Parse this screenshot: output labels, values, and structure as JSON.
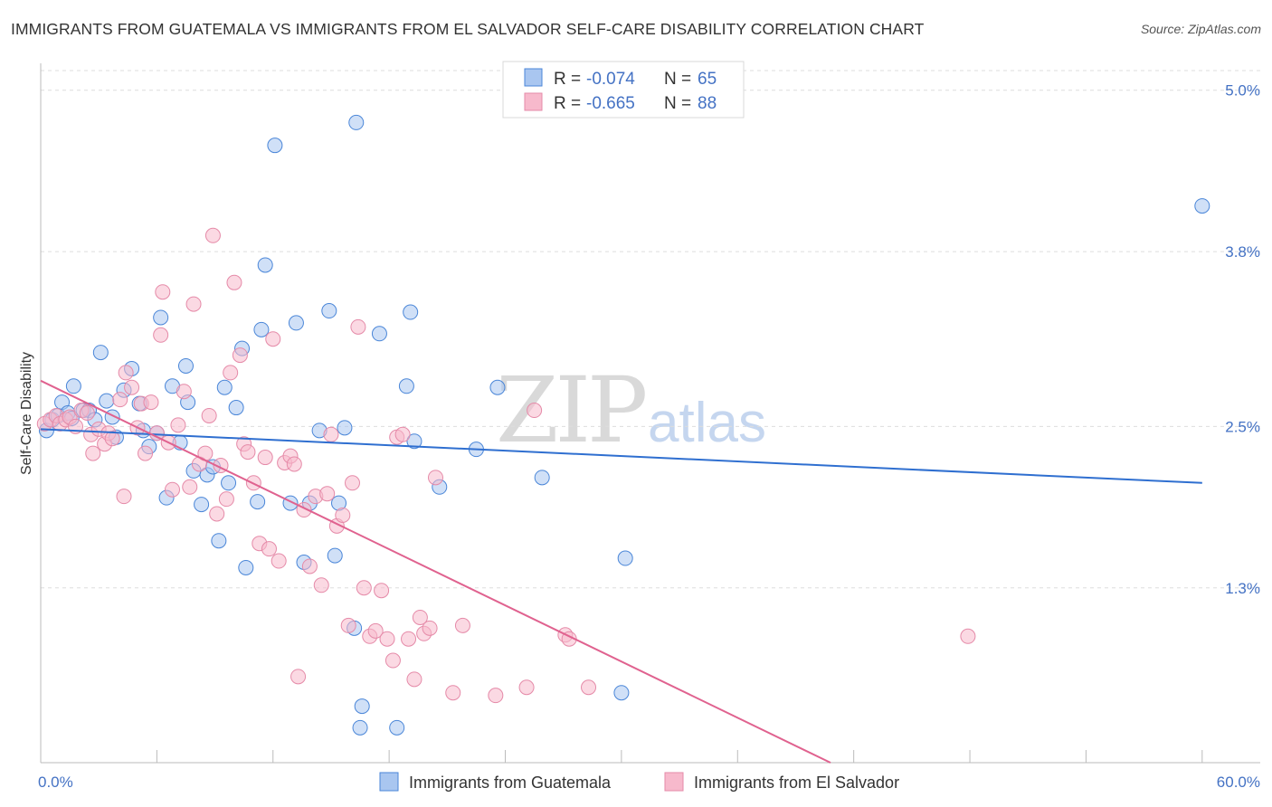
{
  "title": "IMMIGRANTS FROM GUATEMALA VS IMMIGRANTS FROM EL SALVADOR SELF-CARE DISABILITY CORRELATION CHART",
  "source": "Source: ZipAtlas.com",
  "watermark": {
    "zip": "ZIP",
    "atlas": "atlas"
  },
  "legend": {
    "r_label": "R =",
    "n_label": "N =",
    "items": [
      {
        "r": "-0.074",
        "n": "65"
      },
      {
        "r": "-0.665",
        "n": "88"
      }
    ]
  },
  "chart_data": {
    "type": "scatter",
    "title": "IMMIGRANTS FROM GUATEMALA VS IMMIGRANTS FROM EL SALVADOR SELF-CARE DISABILITY CORRELATION CHART",
    "xlabel": "",
    "ylabel": "Self-Care Disability",
    "xlim": [
      0,
      63
    ],
    "ylim": [
      0,
      5.2
    ],
    "x_tick_labels": [
      "0.0%",
      "60.0%"
    ],
    "y_ticks": [
      1.3,
      2.5,
      3.8,
      5.0
    ],
    "y_tick_labels": [
      "1.3%",
      "2.5%",
      "3.8%",
      "5.0%"
    ],
    "grid": true,
    "legend_position": "top-center",
    "colors": {
      "guatemala_fill": "#a9c6f0",
      "guatemala_stroke": "#4a86d8",
      "guatemala_line": "#2f6fd0",
      "elsalvador_fill": "#f7b9cc",
      "elsalvador_stroke": "#e58aa8",
      "elsalvador_line": "#e0628f"
    },
    "series": [
      {
        "name": "Immigrants from Guatemala",
        "trend": {
          "x": [
            0,
            60
          ],
          "y": [
            2.48,
            2.08
          ]
        },
        "points": [
          [
            0.3,
            2.47
          ],
          [
            0.6,
            2.55
          ],
          [
            0.9,
            2.58
          ],
          [
            1.1,
            2.68
          ],
          [
            1.4,
            2.6
          ],
          [
            1.6,
            2.56
          ],
          [
            1.7,
            2.8
          ],
          [
            2.2,
            2.62
          ],
          [
            2.5,
            2.62
          ],
          [
            2.8,
            2.55
          ],
          [
            3.1,
            3.05
          ],
          [
            3.4,
            2.69
          ],
          [
            3.7,
            2.57
          ],
          [
            3.9,
            2.42
          ],
          [
            4.3,
            2.77
          ],
          [
            4.7,
            2.93
          ],
          [
            5.1,
            2.67
          ],
          [
            5.3,
            2.47
          ],
          [
            5.6,
            2.35
          ],
          [
            6.0,
            2.45
          ],
          [
            6.2,
            3.31
          ],
          [
            6.5,
            1.97
          ],
          [
            6.8,
            2.8
          ],
          [
            7.2,
            2.38
          ],
          [
            7.5,
            2.95
          ],
          [
            7.6,
            2.68
          ],
          [
            7.9,
            2.17
          ],
          [
            8.3,
            1.92
          ],
          [
            8.6,
            2.14
          ],
          [
            8.9,
            2.2
          ],
          [
            9.2,
            1.65
          ],
          [
            9.5,
            2.79
          ],
          [
            9.7,
            2.08
          ],
          [
            10.1,
            2.64
          ],
          [
            10.4,
            3.08
          ],
          [
            10.6,
            1.45
          ],
          [
            11.2,
            1.94
          ],
          [
            11.4,
            3.22
          ],
          [
            11.6,
            3.7
          ],
          [
            12.1,
            4.59
          ],
          [
            12.9,
            1.93
          ],
          [
            13.2,
            3.27
          ],
          [
            13.6,
            1.49
          ],
          [
            13.9,
            1.93
          ],
          [
            14.4,
            2.47
          ],
          [
            14.9,
            3.36
          ],
          [
            15.2,
            1.54
          ],
          [
            15.4,
            1.93
          ],
          [
            15.7,
            2.49
          ],
          [
            16.5,
            0.26
          ],
          [
            16.2,
            1.0
          ],
          [
            16.6,
            0.42
          ],
          [
            16.3,
            4.76
          ],
          [
            17.5,
            3.19
          ],
          [
            18.4,
            0.26
          ],
          [
            18.9,
            2.8
          ],
          [
            19.1,
            3.35
          ],
          [
            19.3,
            2.39
          ],
          [
            22.5,
            2.33
          ],
          [
            23.6,
            2.79
          ],
          [
            25.9,
            2.12
          ],
          [
            20.6,
            2.05
          ],
          [
            30.2,
            1.52
          ],
          [
            30.0,
            0.52
          ],
          [
            60.0,
            4.14
          ]
        ]
      },
      {
        "name": "Immigrants from El Salvador",
        "trend": {
          "x": [
            0,
            40.8
          ],
          "y": [
            2.84,
            0.0
          ]
        },
        "points": [
          [
            0.2,
            2.52
          ],
          [
            0.5,
            2.55
          ],
          [
            0.8,
            2.58
          ],
          [
            1.0,
            2.52
          ],
          [
            1.3,
            2.55
          ],
          [
            1.5,
            2.57
          ],
          [
            1.8,
            2.5
          ],
          [
            2.1,
            2.62
          ],
          [
            2.4,
            2.6
          ],
          [
            2.6,
            2.44
          ],
          [
            2.7,
            2.3
          ],
          [
            3.0,
            2.48
          ],
          [
            3.3,
            2.37
          ],
          [
            3.5,
            2.45
          ],
          [
            3.7,
            2.41
          ],
          [
            4.1,
            2.7
          ],
          [
            4.3,
            1.98
          ],
          [
            4.4,
            2.9
          ],
          [
            4.7,
            2.79
          ],
          [
            5.0,
            2.49
          ],
          [
            5.2,
            2.67
          ],
          [
            5.4,
            2.3
          ],
          [
            5.7,
            2.68
          ],
          [
            6.0,
            2.45
          ],
          [
            6.2,
            3.18
          ],
          [
            6.3,
            3.5
          ],
          [
            6.6,
            2.38
          ],
          [
            6.8,
            2.03
          ],
          [
            7.1,
            2.51
          ],
          [
            7.4,
            2.76
          ],
          [
            7.7,
            2.05
          ],
          [
            7.9,
            3.41
          ],
          [
            8.2,
            2.22
          ],
          [
            8.5,
            2.3
          ],
          [
            8.7,
            2.58
          ],
          [
            8.9,
            3.92
          ],
          [
            9.1,
            1.85
          ],
          [
            9.3,
            2.21
          ],
          [
            9.6,
            1.96
          ],
          [
            9.8,
            2.9
          ],
          [
            10.0,
            3.57
          ],
          [
            10.3,
            3.03
          ],
          [
            10.5,
            2.37
          ],
          [
            10.7,
            2.31
          ],
          [
            11.0,
            2.08
          ],
          [
            11.3,
            1.63
          ],
          [
            11.6,
            2.27
          ],
          [
            11.8,
            1.59
          ],
          [
            12.0,
            3.15
          ],
          [
            12.3,
            1.5
          ],
          [
            12.6,
            2.23
          ],
          [
            12.9,
            2.28
          ],
          [
            13.1,
            2.22
          ],
          [
            13.3,
            0.64
          ],
          [
            13.6,
            1.88
          ],
          [
            13.9,
            1.46
          ],
          [
            14.2,
            1.98
          ],
          [
            14.5,
            1.32
          ],
          [
            14.8,
            2.0
          ],
          [
            15.0,
            2.44
          ],
          [
            15.3,
            1.76
          ],
          [
            15.6,
            1.84
          ],
          [
            15.9,
            1.02
          ],
          [
            16.1,
            2.08
          ],
          [
            16.4,
            3.24
          ],
          [
            16.7,
            1.3
          ],
          [
            17.0,
            0.94
          ],
          [
            17.3,
            0.98
          ],
          [
            17.6,
            1.28
          ],
          [
            17.9,
            0.92
          ],
          [
            18.2,
            0.76
          ],
          [
            18.4,
            2.42
          ],
          [
            18.7,
            2.44
          ],
          [
            19.0,
            0.92
          ],
          [
            19.3,
            0.62
          ],
          [
            19.6,
            1.08
          ],
          [
            19.8,
            0.96
          ],
          [
            20.1,
            1.0
          ],
          [
            20.4,
            2.12
          ],
          [
            21.3,
            0.52
          ],
          [
            21.8,
            1.02
          ],
          [
            25.1,
            0.56
          ],
          [
            25.5,
            2.62
          ],
          [
            27.1,
            0.95
          ],
          [
            27.3,
            0.92
          ],
          [
            28.3,
            0.56
          ],
          [
            23.5,
            0.5
          ],
          [
            47.9,
            0.94
          ]
        ]
      }
    ]
  }
}
